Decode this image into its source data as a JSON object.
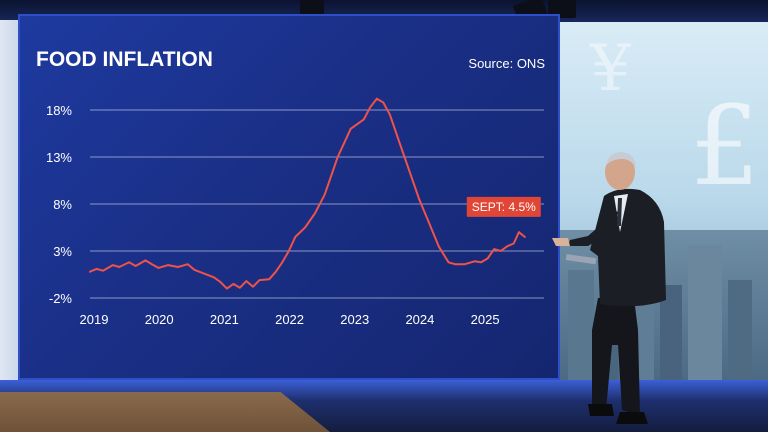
{
  "chart_data": {
    "type": "line",
    "title": "FOOD INFLATION",
    "source": "Source: ONS",
    "y_ticks": [
      "18%",
      "13%",
      "8%",
      "3%",
      "-2%"
    ],
    "y_tick_values": [
      18,
      13,
      8,
      3,
      -2
    ],
    "x_ticks": [
      "2019",
      "2020",
      "2021",
      "2022",
      "2023",
      "2024",
      "2025"
    ],
    "x_tick_values": [
      2019,
      2020,
      2021,
      2022,
      2023,
      2024,
      2025
    ],
    "ylim": [
      -2,
      18
    ],
    "xlim": [
      2019,
      2025.75
    ],
    "grid": true,
    "line_color": "#f0524a",
    "annotation": {
      "label": "SEPT: 4.5%",
      "x": 2025.67,
      "y": 4.5,
      "color": "#e04536"
    },
    "series": [
      {
        "x": [
          2019.0,
          2019.1,
          2019.2,
          2019.35,
          2019.45,
          2019.6,
          2019.7,
          2019.85,
          2019.95,
          2020.05,
          2020.2,
          2020.35,
          2020.5,
          2020.6,
          2020.75,
          2020.9,
          2021.0,
          2021.1,
          2021.2,
          2021.3,
          2021.4,
          2021.5,
          2021.6,
          2021.75,
          2021.85,
          2021.95,
          2022.05,
          2022.15,
          2022.3,
          2022.45,
          2022.6,
          2022.7,
          2022.8,
          2022.9,
          2023.0,
          2023.1,
          2023.2,
          2023.3,
          2023.4,
          2023.5,
          2023.6,
          2023.75,
          2023.9,
          2024.05,
          2024.2,
          2024.35,
          2024.5,
          2024.6,
          2024.75,
          2024.9,
          2025.0,
          2025.1,
          2025.2,
          2025.3,
          2025.4,
          2025.5,
          2025.58,
          2025.67
        ],
        "y": [
          0.8,
          1.1,
          0.9,
          1.5,
          1.3,
          1.8,
          1.4,
          2.0,
          1.6,
          1.2,
          1.5,
          1.3,
          1.6,
          1.0,
          0.6,
          0.2,
          -0.3,
          -1.0,
          -0.5,
          -0.9,
          -0.2,
          -0.8,
          -0.1,
          0.0,
          0.8,
          1.8,
          3.0,
          4.5,
          5.5,
          7.0,
          9.0,
          11.0,
          13.0,
          14.5,
          16.0,
          16.5,
          17.0,
          18.3,
          19.2,
          18.8,
          17.5,
          14.5,
          11.5,
          8.5,
          6.0,
          3.5,
          1.8,
          1.6,
          1.6,
          1.9,
          1.8,
          2.2,
          3.2,
          3.0,
          3.5,
          3.8,
          5.0,
          4.5
        ]
      }
    ]
  }
}
